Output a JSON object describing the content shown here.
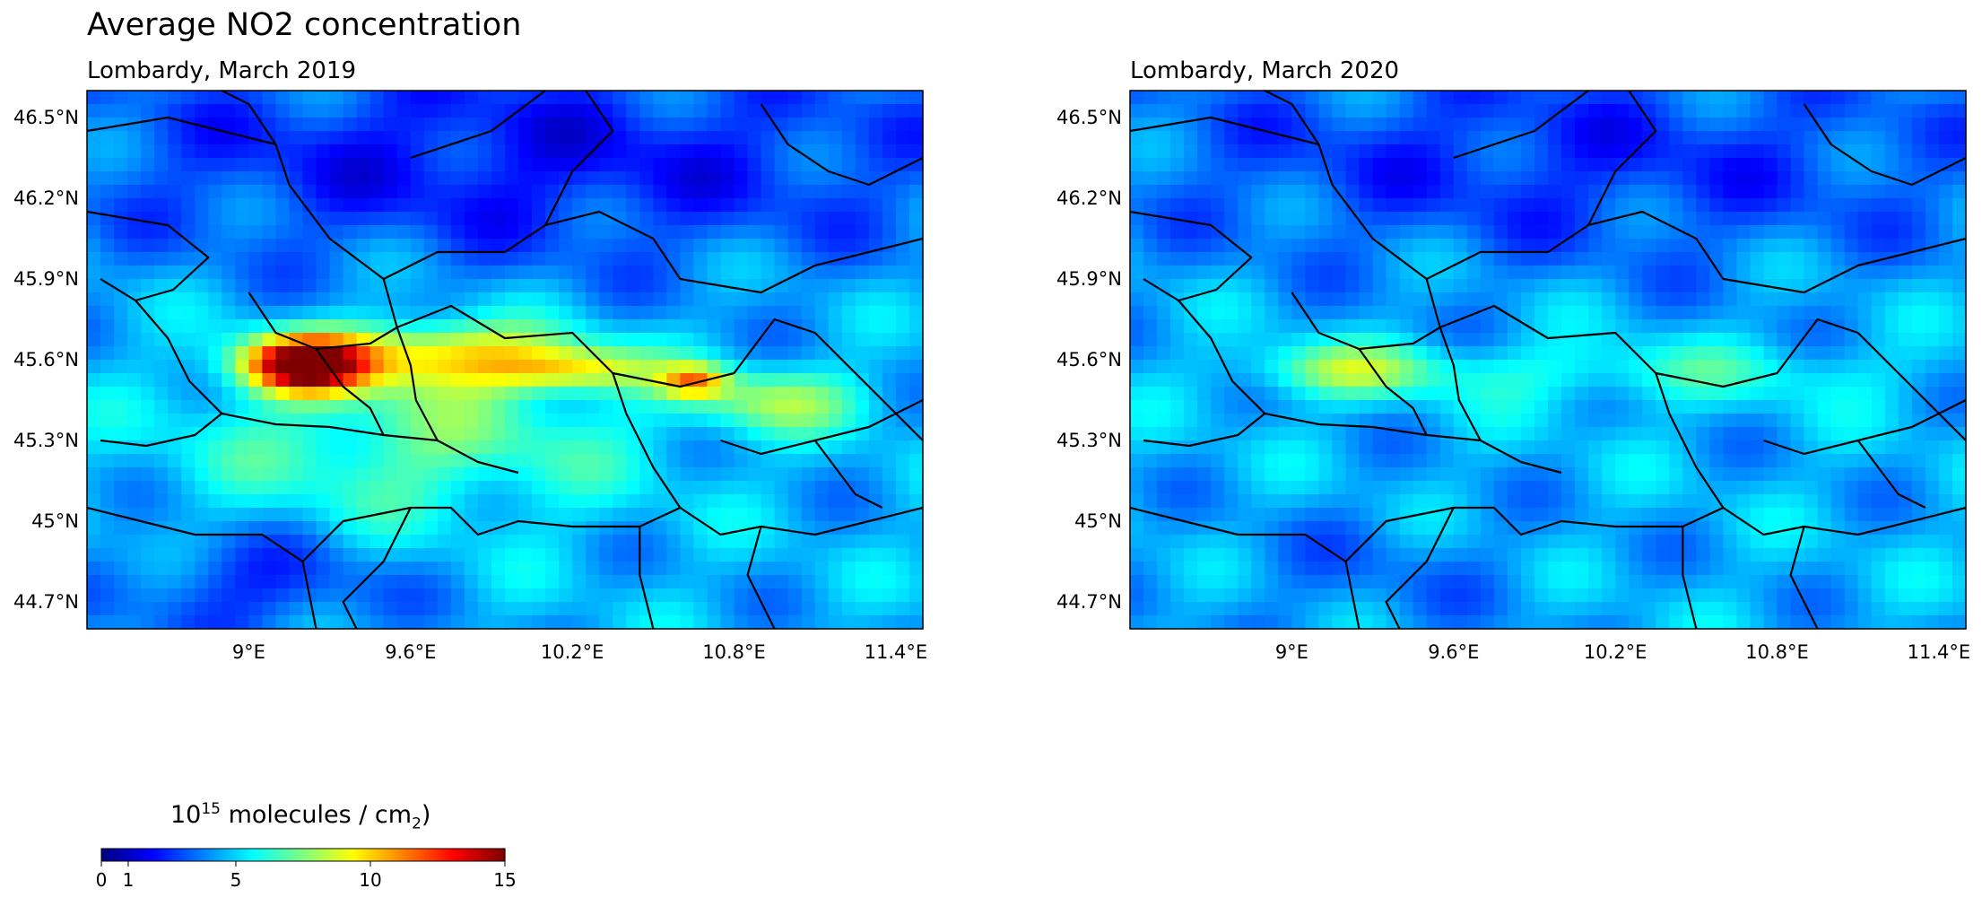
{
  "title": "Average NO2 concentration",
  "panels": [
    {
      "title": "Lombardy, March 2019"
    },
    {
      "title": "Lombardy, March 2020"
    }
  ],
  "map": {
    "projection": "PlateCarree",
    "lon_range": [
      8.4,
      11.5
    ],
    "lat_range": [
      44.6,
      46.6
    ],
    "lon_ticks": [
      {
        "value": 9.0,
        "label": "9°E"
      },
      {
        "value": 9.6,
        "label": "9.6°E"
      },
      {
        "value": 10.2,
        "label": "10.2°E"
      },
      {
        "value": 10.8,
        "label": "10.8°E"
      },
      {
        "value": 11.4,
        "label": "11.4°E"
      }
    ],
    "lat_ticks": [
      {
        "value": 46.5,
        "label": "46.5°N"
      },
      {
        "value": 46.2,
        "label": "46.2°N"
      },
      {
        "value": 45.9,
        "label": "45.9°N"
      },
      {
        "value": 45.6,
        "label": "45.6°N"
      },
      {
        "value": 45.3,
        "label": "45.3°N"
      },
      {
        "value": 45.0,
        "label": "45°N"
      },
      {
        "value": 44.7,
        "label": "44.7°N"
      }
    ],
    "boundary_color": "#000000"
  },
  "colorbar": {
    "label_base": "10",
    "label_exp": "15",
    "label_text": " molecules / cm",
    "label_sub": "2",
    "label_close": ")",
    "colormap": "jet",
    "min": 0,
    "max": 15,
    "ticks": [
      {
        "value": 0,
        "label": "0"
      },
      {
        "value": 1,
        "label": "1"
      },
      {
        "value": 5,
        "label": "5"
      },
      {
        "value": 10,
        "label": "10"
      },
      {
        "value": 15,
        "label": "15"
      }
    ]
  },
  "field": {
    "background": 4.5,
    "hotspots_2019": [
      {
        "lon": 9.2,
        "lat": 45.58,
        "amp": 10.5,
        "rx": 0.22,
        "ry": 0.1
      },
      {
        "lon": 9.7,
        "lat": 45.62,
        "amp": 5.0,
        "rx": 0.5,
        "ry": 0.12
      },
      {
        "lon": 10.2,
        "lat": 45.56,
        "amp": 4.0,
        "rx": 0.3,
        "ry": 0.08
      },
      {
        "lon": 10.65,
        "lat": 45.52,
        "amp": 5.0,
        "rx": 0.12,
        "ry": 0.06
      },
      {
        "lon": 10.95,
        "lat": 45.45,
        "amp": 3.0,
        "rx": 0.35,
        "ry": 0.12
      },
      {
        "lon": 9.6,
        "lat": 45.3,
        "amp": 2.5,
        "rx": 0.8,
        "ry": 0.3
      },
      {
        "lon": 10.0,
        "lat": 46.35,
        "amp": -2.5,
        "rx": 1.8,
        "ry": 0.4
      },
      {
        "lon": 9.0,
        "lat": 44.75,
        "amp": -2.0,
        "rx": 0.5,
        "ry": 0.2
      }
    ],
    "hotspots_2020": [
      {
        "lon": 9.2,
        "lat": 45.56,
        "amp": 3.0,
        "rx": 0.35,
        "ry": 0.1
      },
      {
        "lon": 10.3,
        "lat": 45.55,
        "amp": 1.6,
        "rx": 0.9,
        "ry": 0.12
      },
      {
        "lon": 10.0,
        "lat": 46.35,
        "amp": -2.0,
        "rx": 1.8,
        "ry": 0.4
      },
      {
        "lon": 9.3,
        "lat": 44.8,
        "amp": -0.8,
        "rx": 0.6,
        "ry": 0.25
      }
    ]
  }
}
